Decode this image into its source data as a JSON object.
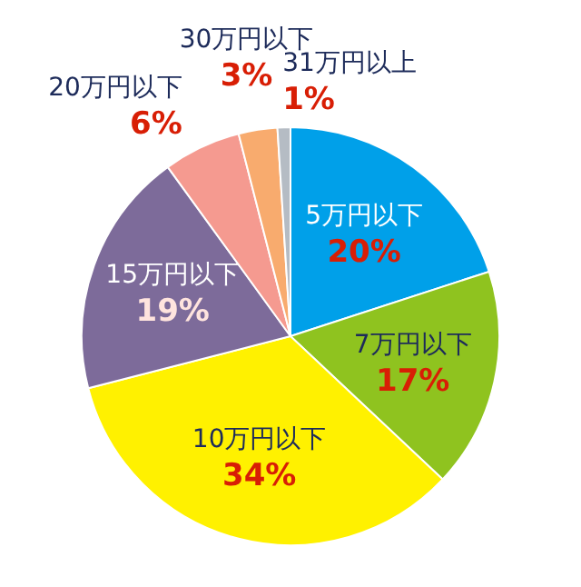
{
  "chart_data": {
    "type": "pie",
    "categories": [
      "5万円以下",
      "7万円以下",
      "10万円以下",
      "15万円以下",
      "20万円以下",
      "30万円以下",
      "31万円以上"
    ],
    "values": [
      20,
      17,
      34,
      19,
      6,
      3,
      1
    ],
    "colors": [
      "#00a0e9",
      "#8fc31f",
      "#fff100",
      "#7d6b9a",
      "#f59a90",
      "#f8ab6e",
      "#b5bcc4"
    ],
    "value_labels": [
      "20%",
      "17%",
      "34%",
      "19%",
      "6%",
      "3%",
      "1%"
    ]
  }
}
